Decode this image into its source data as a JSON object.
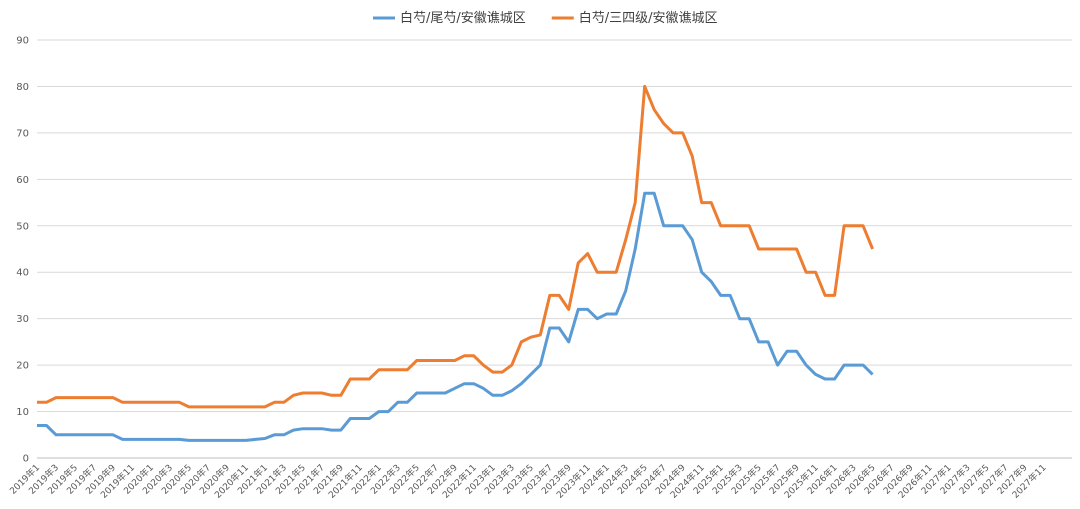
{
  "chart_data": {
    "type": "line",
    "categories": [
      "2019年1",
      null,
      "2019年3",
      null,
      "2019年5",
      null,
      "2019年7",
      null,
      "2019年9",
      null,
      "2019年11",
      null,
      "2020年1",
      null,
      "2020年3",
      null,
      "2020年5",
      null,
      "2020年7",
      null,
      "2020年9",
      null,
      "2020年11",
      null,
      "2021年1",
      null,
      "2021年3",
      null,
      "2021年5",
      null,
      "2021年7",
      null,
      "2021年9",
      null,
      "2021年11",
      null,
      "2022年1",
      null,
      "2022年3",
      null,
      "2022年5",
      null,
      "2022年7",
      null,
      "2022年9",
      null,
      "2022年11",
      null,
      "2023年1",
      null,
      "2023年3",
      null,
      "2023年5",
      null,
      "2023年7",
      null,
      "2023年9",
      null,
      "2023年11",
      null,
      "2024年1",
      null,
      "2024年3",
      null,
      "2024年5",
      null,
      "2024年7",
      null,
      "2024年9",
      null,
      "2024年11",
      null,
      "2025年1",
      null,
      "2025年3",
      null,
      "2025年5",
      null,
      "2025年7",
      null,
      "2025年9",
      null,
      "2025年11",
      null,
      "2026年1",
      null,
      "2026年3",
      null,
      "2026年5",
      null,
      "2026年7",
      null,
      "2026年9",
      null,
      "2026年11",
      null,
      "2027年1",
      null,
      "2027年3",
      null,
      "2027年5",
      null,
      "2027年7",
      null,
      "2027年9",
      null,
      "2027年11",
      null
    ],
    "series": [
      {
        "name": "白芍/尾芍/安徽谯城区",
        "color": "#5b9bd5",
        "values": [
          7,
          7,
          5,
          5,
          5,
          5,
          5,
          5,
          5,
          4,
          4,
          4,
          4,
          4,
          4,
          4,
          3.8,
          3.8,
          3.8,
          3.8,
          3.8,
          3.8,
          3.8,
          4,
          4.2,
          5,
          5,
          6,
          6.3,
          6.3,
          6.3,
          6,
          6,
          8.5,
          8.5,
          8.5,
          10,
          10,
          12,
          12,
          14,
          14,
          14,
          14,
          15,
          16,
          16,
          15,
          13.5,
          13.5,
          14.5,
          16,
          18,
          20,
          28,
          28,
          25,
          32,
          32,
          30,
          31,
          31,
          36,
          45,
          57,
          57,
          50,
          50,
          50,
          47,
          40,
          38,
          35,
          35,
          30,
          30,
          25,
          25,
          20,
          23,
          23,
          20,
          18,
          17,
          17,
          20,
          20,
          20,
          18,
          null,
          null,
          null,
          null,
          null,
          null,
          null,
          null,
          null,
          null,
          null,
          null,
          null,
          null,
          null,
          null,
          null,
          null,
          null
        ]
      },
      {
        "name": "白芍/三四级/安徽谯城区",
        "color": "#ed7d31",
        "values": [
          12,
          12,
          13,
          13,
          13,
          13,
          13,
          13,
          13,
          12,
          12,
          12,
          12,
          12,
          12,
          12,
          11,
          11,
          11,
          11,
          11,
          11,
          11,
          11,
          11,
          12,
          12,
          13.5,
          14,
          14,
          14,
          13.5,
          13.5,
          17,
          17,
          17,
          19,
          19,
          19,
          19,
          21,
          21,
          21,
          21,
          21,
          22,
          22,
          20,
          18.5,
          18.5,
          20,
          25,
          26,
          26.5,
          35,
          35,
          32,
          42,
          44,
          40,
          40,
          40,
          47,
          55,
          80,
          75,
          72,
          70,
          70,
          65,
          55,
          55,
          50,
          50,
          50,
          50,
          45,
          45,
          45,
          45,
          45,
          40,
          40,
          35,
          35,
          50,
          50,
          50,
          45,
          null,
          null,
          null,
          null,
          null,
          null,
          null,
          null,
          null,
          null,
          null,
          null,
          null,
          null,
          null,
          null,
          null,
          null,
          null
        ]
      }
    ],
    "ylim": [
      0,
      90
    ],
    "yticks": [
      0,
      10,
      20,
      30,
      40,
      50,
      60,
      70,
      80,
      90
    ],
    "grid": true,
    "legend": "top"
  }
}
